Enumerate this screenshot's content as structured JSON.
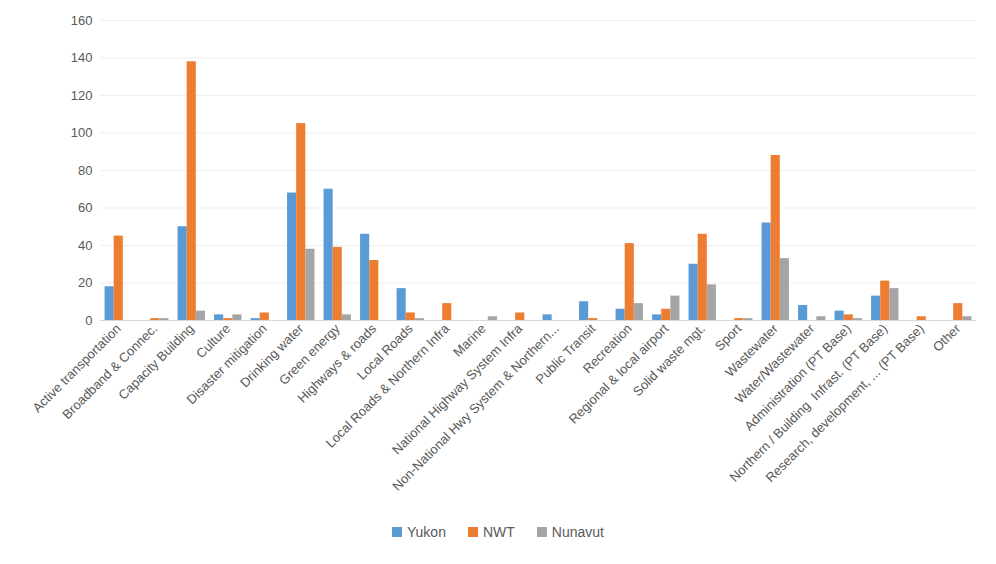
{
  "chart_data": {
    "type": "bar",
    "categories": [
      "Active transportation",
      "Broadband & Connec.",
      "Capacity Building",
      "Culture",
      "Disaster mitigation",
      "Drinking water",
      "Green energy",
      "Highways & roads",
      "Local Roads",
      "Local Roads & Northern Infra",
      "Marine",
      "National Highway System Infra",
      "Non-National Hwy System & Northern...",
      "Public Transit",
      "Recreation",
      "Regional & local airport",
      "Solid waste mgt.",
      "Sport",
      "Wastewater",
      "Water/Wastewater",
      "Administration (PT Base)",
      "Northern / Building  Infrast. (PT Base)",
      "Research, development, ... (PT Base)",
      "Other"
    ],
    "series": [
      {
        "name": "Yukon",
        "color": "#5B9BD5",
        "values": [
          18,
          0,
          50,
          3,
          1,
          68,
          70,
          46,
          17,
          0,
          0,
          0,
          3,
          10,
          6,
          3,
          30,
          0,
          52,
          8,
          5,
          13,
          0,
          0
        ]
      },
      {
        "name": "NWT",
        "color": "#ED7D31",
        "values": [
          45,
          1,
          138,
          1,
          4,
          105,
          39,
          32,
          4,
          9,
          0,
          4,
          0,
          1,
          41,
          6,
          46,
          1,
          88,
          0,
          3,
          21,
          2,
          9
        ]
      },
      {
        "name": "Nunavut",
        "color": "#A5A5A5",
        "values": [
          0,
          1,
          5,
          3,
          0,
          38,
          3,
          0,
          1,
          0,
          2,
          0,
          0,
          0,
          9,
          13,
          19,
          1,
          33,
          2,
          1,
          17,
          0,
          2
        ]
      }
    ],
    "ylim": [
      0,
      160
    ],
    "yticks": [
      0,
      20,
      40,
      60,
      80,
      100,
      120,
      140,
      160
    ],
    "grid": true,
    "legend": "bottom"
  }
}
